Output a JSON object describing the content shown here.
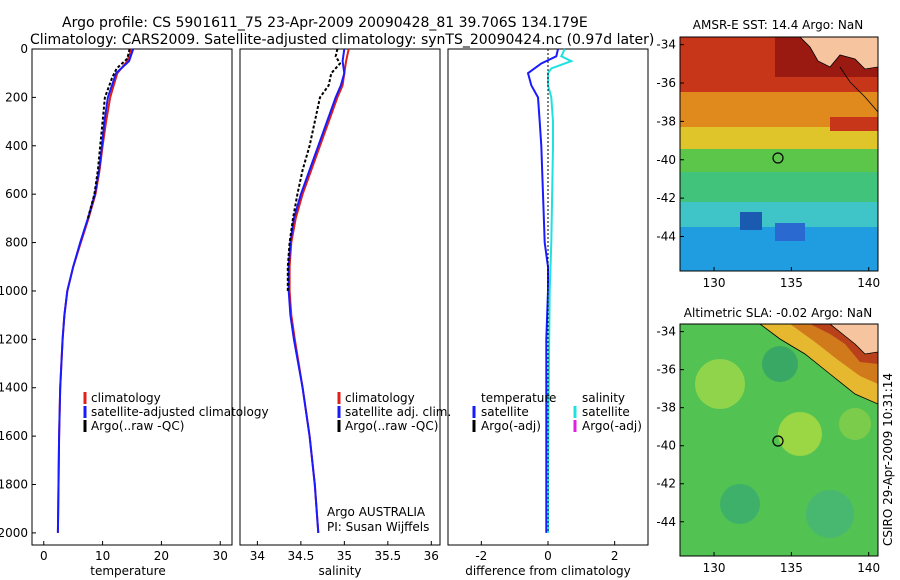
{
  "title": {
    "line1": "Argo profile: CS 5901611_75 23-Apr-2009 20090428_81 39.706S 134.179E",
    "line2": "Climatology: CARS2009. Satellite-adjusted climatology: synTS_20090424.nc (0.97d later)"
  },
  "colors": {
    "climatology": "#e0201b",
    "satellite": "#1a1aff",
    "argo": "#000000",
    "sat_diff_salinity": "#20e0e0",
    "argo_adj_salinity": "#e020e0"
  },
  "chart_data": [
    {
      "type": "line",
      "panel": "temperature",
      "xlabel": "temperature",
      "ylabel": "",
      "xlim": [
        -2,
        32
      ],
      "ylim": [
        2050,
        0
      ],
      "xticks": [
        0,
        10,
        20,
        30
      ],
      "yticks": [
        0,
        200,
        400,
        600,
        800,
        1000,
        1200,
        1400,
        1600,
        1800,
        2000
      ],
      "legend": [
        "climatology",
        "satellite-adjusted climatology",
        "Argo(..raw -QC)"
      ],
      "series": [
        {
          "name": "climatology",
          "y": [
            0,
            50,
            100,
            200,
            300,
            400,
            500,
            600,
            700,
            800,
            900,
            1000,
            1100,
            1200,
            1300,
            1400,
            1600,
            1800,
            2000
          ],
          "values": [
            14.9,
            14.2,
            12.5,
            11.3,
            10.6,
            10.0,
            9.5,
            8.8,
            7.6,
            6.3,
            5.0,
            4.0,
            3.5,
            3.2,
            3.0,
            2.8,
            2.6,
            2.5,
            2.4
          ]
        },
        {
          "name": "satellite-adjusted climatology",
          "y": [
            0,
            50,
            100,
            200,
            300,
            400,
            500,
            600,
            700,
            800,
            900,
            1000,
            1100,
            1200,
            1300,
            1400,
            1600,
            1800,
            2000
          ],
          "values": [
            15.2,
            14.5,
            12.3,
            10.9,
            10.3,
            9.9,
            9.4,
            8.7,
            7.5,
            6.2,
            5.0,
            4.0,
            3.5,
            3.2,
            3.0,
            2.8,
            2.6,
            2.5,
            2.4
          ]
        },
        {
          "name": "Argo(..raw -QC)",
          "y": [
            0,
            40,
            80,
            120,
            160,
            200,
            300,
            400,
            500,
            600,
            700
          ],
          "values": [
            14.6,
            14.2,
            12.4,
            11.6,
            11.0,
            10.4,
            10.0,
            9.6,
            9.2,
            8.6,
            7.5
          ]
        }
      ]
    },
    {
      "type": "line",
      "panel": "salinity",
      "xlabel": "salinity",
      "ylabel": "",
      "xlim": [
        33.8,
        36.1
      ],
      "ylim": [
        2050,
        0
      ],
      "xticks": [
        34,
        34.5,
        35,
        35.5,
        36
      ],
      "legend": [
        "climatology",
        "satellite adj. clim.",
        "Argo(..raw -QC)"
      ],
      "annotations": [
        "Argo AUSTRALIA",
        "PI: Susan Wijffels"
      ],
      "series": [
        {
          "name": "climatology",
          "y": [
            0,
            50,
            100,
            150,
            200,
            300,
            400,
            500,
            600,
            700,
            800,
            900,
            1000,
            1100,
            1200,
            1400,
            1600,
            1800,
            2000
          ],
          "values": [
            35.05,
            35.02,
            35.0,
            34.98,
            34.92,
            34.82,
            34.72,
            34.62,
            34.52,
            34.44,
            34.39,
            34.37,
            34.37,
            34.39,
            34.43,
            34.52,
            34.6,
            34.66,
            34.7
          ]
        },
        {
          "name": "satellite adj. clim.",
          "y": [
            0,
            50,
            100,
            150,
            200,
            300,
            400,
            500,
            600,
            700,
            800,
            900,
            1000,
            1100,
            1200,
            1400,
            1600,
            1800,
            2000
          ],
          "values": [
            35.0,
            34.98,
            35.0,
            34.96,
            34.9,
            34.8,
            34.7,
            34.6,
            34.5,
            34.42,
            34.38,
            34.36,
            34.36,
            34.38,
            34.42,
            34.52,
            34.6,
            34.66,
            34.7
          ]
        },
        {
          "name": "Argo(..raw -QC)",
          "y": [
            0,
            30,
            60,
            100,
            150,
            200,
            300,
            400,
            500,
            600,
            700,
            800,
            900,
            1000
          ],
          "values": [
            34.92,
            34.9,
            34.95,
            34.85,
            34.82,
            34.72,
            34.66,
            34.6,
            34.52,
            34.46,
            34.41,
            34.37,
            34.35,
            34.35
          ]
        }
      ]
    },
    {
      "type": "line",
      "panel": "difference from climatology",
      "xlabel": "difference from climatology",
      "ylabel": "",
      "xlim": [
        -3,
        3
      ],
      "ylim": [
        2050,
        0
      ],
      "xticks": [
        -2,
        0,
        2
      ],
      "legend": {
        "temperature": [
          "temperature",
          "satellite",
          "Argo(-adj)"
        ],
        "salinity": [
          "salinity",
          "satellite",
          "Argo(-adj)"
        ]
      },
      "series": [
        {
          "name": "temperature satellite",
          "y": [
            0,
            30,
            60,
            100,
            150,
            200,
            300,
            400,
            600,
            800,
            900,
            1000,
            1200,
            1600,
            2000
          ],
          "values": [
            0.3,
            0.25,
            -0.2,
            -0.6,
            -0.5,
            -0.3,
            -0.25,
            -0.2,
            -0.15,
            -0.1,
            0.0,
            0.0,
            -0.05,
            -0.05,
            -0.05
          ]
        },
        {
          "name": "salinity satellite",
          "y": [
            0,
            30,
            50,
            80,
            100,
            150,
            200,
            300,
            400,
            800,
            1000,
            1400,
            1800,
            2000
          ],
          "values": [
            0.5,
            0.4,
            0.7,
            0.1,
            0.0,
            0.0,
            0.1,
            0.15,
            0.15,
            0.1,
            0.05,
            0.02,
            0.0,
            0.0
          ]
        },
        {
          "name": "zero line",
          "y": [
            0,
            2000
          ],
          "values": [
            0,
            0
          ]
        }
      ]
    }
  ],
  "maps": {
    "sst": {
      "title": "AMSR-E SST: 14.4 Argo: NaN",
      "xticks": [
        "130",
        "135",
        "140"
      ],
      "yticks": [
        "-34",
        "-36",
        "-38",
        "-40",
        "-42",
        "-44"
      ]
    },
    "sla": {
      "title": "Altimetric SLA: -0.02 Argo: NaN",
      "xticks": [
        "130",
        "135",
        "140"
      ],
      "yticks": [
        "-34",
        "-36",
        "-38",
        "-40",
        "-42",
        "-44"
      ]
    }
  },
  "credit": "CSIRO 29-Apr-2009 10:31:14"
}
